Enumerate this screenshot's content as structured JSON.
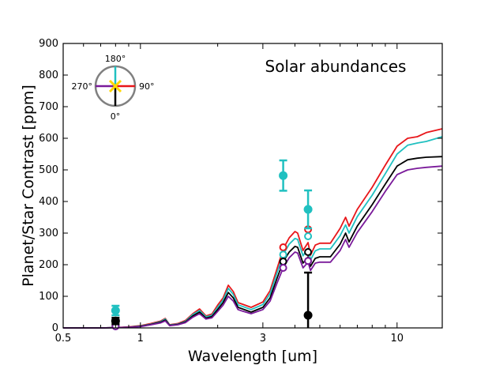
{
  "chart_data": {
    "type": "line",
    "title": "",
    "xlabel": "Wavelength [um]",
    "ylabel": "Planet/Star Contrast [ppm]",
    "xscale": "log",
    "xlim": [
      0.5,
      15
    ],
    "ylim": [
      0,
      900
    ],
    "x_ticks": [
      {
        "value": 0.5,
        "label": "0.5"
      },
      {
        "value": 1,
        "label": "1"
      },
      {
        "value": 3,
        "label": "3"
      },
      {
        "value": 10,
        "label": "10"
      }
    ],
    "y_ticks": [
      {
        "value": 0,
        "label": "0"
      },
      {
        "value": 100,
        "label": "100"
      },
      {
        "value": 200,
        "label": "200"
      },
      {
        "value": 300,
        "label": "300"
      },
      {
        "value": 400,
        "label": "400"
      },
      {
        "value": 500,
        "label": "500"
      },
      {
        "value": 600,
        "label": "600"
      },
      {
        "value": 700,
        "label": "700"
      },
      {
        "value": 800,
        "label": "800"
      },
      {
        "value": 900,
        "label": "900"
      }
    ],
    "annotation": "Solar abundances",
    "compass": {
      "labels": {
        "top": "180°",
        "right": "90°",
        "bottom": "0°",
        "left": "270°"
      },
      "colors": {
        "top": "#20c0c0",
        "right": "#e8161a",
        "bottom": "#000000",
        "left": "#7a1a9a"
      },
      "marker_color": "#ffd700"
    },
    "series": [
      {
        "name": "90°",
        "color": "#e8161a",
        "x": [
          0.5,
          0.6,
          0.7,
          0.8,
          0.9,
          1.0,
          1.1,
          1.2,
          1.25,
          1.3,
          1.4,
          1.5,
          1.6,
          1.7,
          1.8,
          1.9,
          2.0,
          2.1,
          2.2,
          2.3,
          2.4,
          2.5,
          2.7,
          3.0,
          3.2,
          3.4,
          3.6,
          3.8,
          4.0,
          4.1,
          4.3,
          4.5,
          4.6,
          4.8,
          5.0,
          5.5,
          6.0,
          6.3,
          6.5,
          7.0,
          8.0,
          9.0,
          10.0,
          11.0,
          12.0,
          13.0,
          15.0
        ],
        "y": [
          0,
          0,
          0,
          1,
          3,
          7,
          14,
          22,
          30,
          10,
          14,
          24,
          45,
          60,
          38,
          44,
          72,
          95,
          135,
          115,
          80,
          75,
          65,
          82,
          118,
          185,
          250,
          285,
          305,
          300,
          245,
          270,
          230,
          262,
          268,
          268,
          315,
          350,
          322,
          375,
          445,
          515,
          575,
          600,
          605,
          618,
          630
        ]
      },
      {
        "name": "180°",
        "color": "#20c0c0",
        "x": [
          0.5,
          0.6,
          0.7,
          0.8,
          0.9,
          1.0,
          1.1,
          1.2,
          1.25,
          1.3,
          1.4,
          1.5,
          1.6,
          1.7,
          1.8,
          1.9,
          2.0,
          2.1,
          2.2,
          2.3,
          2.4,
          2.5,
          2.7,
          3.0,
          3.2,
          3.4,
          3.6,
          3.8,
          4.0,
          4.1,
          4.3,
          4.5,
          4.6,
          4.8,
          5.0,
          5.5,
          6.0,
          6.3,
          6.5,
          7.0,
          8.0,
          9.0,
          10.0,
          11.0,
          12.0,
          13.0,
          15.0
        ],
        "y": [
          0,
          0,
          0,
          1,
          2,
          6,
          12,
          20,
          28,
          9,
          12,
          21,
          42,
          55,
          35,
          40,
          65,
          88,
          125,
          106,
          73,
          68,
          58,
          74,
          108,
          172,
          232,
          265,
          283,
          280,
          228,
          252,
          215,
          244,
          250,
          250,
          292,
          326,
          300,
          352,
          420,
          488,
          550,
          578,
          585,
          590,
          605
        ]
      },
      {
        "name": "0°",
        "color": "#000000",
        "x": [
          0.5,
          0.6,
          0.7,
          0.8,
          0.9,
          1.0,
          1.1,
          1.2,
          1.25,
          1.3,
          1.4,
          1.5,
          1.6,
          1.7,
          1.8,
          1.9,
          2.0,
          2.1,
          2.2,
          2.3,
          2.4,
          2.5,
          2.7,
          3.0,
          3.2,
          3.4,
          3.6,
          3.8,
          4.0,
          4.1,
          4.3,
          4.5,
          4.6,
          4.8,
          5.0,
          5.5,
          6.0,
          6.3,
          6.5,
          7.0,
          8.0,
          9.0,
          10.0,
          11.0,
          12.0,
          13.0,
          15.0
        ],
        "y": [
          0,
          0,
          0,
          1,
          2,
          5,
          11,
          18,
          25,
          8,
          11,
          19,
          38,
          50,
          31,
          36,
          58,
          80,
          112,
          95,
          65,
          60,
          50,
          65,
          95,
          155,
          210,
          240,
          258,
          255,
          205,
          225,
          195,
          220,
          225,
          225,
          265,
          300,
          272,
          322,
          390,
          455,
          512,
          532,
          537,
          540,
          542
        ]
      },
      {
        "name": "270°",
        "color": "#7a1a9a",
        "x": [
          0.5,
          0.6,
          0.7,
          0.8,
          0.9,
          1.0,
          1.1,
          1.2,
          1.25,
          1.3,
          1.4,
          1.5,
          1.6,
          1.7,
          1.8,
          1.9,
          2.0,
          2.1,
          2.2,
          2.3,
          2.4,
          2.5,
          2.7,
          3.0,
          3.2,
          3.4,
          3.6,
          3.8,
          4.0,
          4.1,
          4.3,
          4.5,
          4.6,
          4.8,
          5.0,
          5.5,
          6.0,
          6.3,
          6.5,
          7.0,
          8.0,
          9.0,
          10.0,
          11.0,
          12.0,
          13.0,
          15.0
        ],
        "y": [
          0,
          0,
          0,
          1,
          2,
          4,
          10,
          16,
          22,
          7,
          10,
          17,
          34,
          45,
          28,
          32,
          52,
          72,
          100,
          85,
          58,
          53,
          45,
          58,
          85,
          140,
          190,
          222,
          240,
          237,
          190,
          208,
          182,
          205,
          208,
          208,
          245,
          280,
          255,
          302,
          368,
          432,
          485,
          500,
          505,
          508,
          512
        ]
      }
    ],
    "model_points": [
      {
        "x": 0.8,
        "y": 12,
        "color": "#e8161a"
      },
      {
        "x": 0.8,
        "y": 10,
        "color": "#20c0c0"
      },
      {
        "x": 0.8,
        "y": 7,
        "color": "#000000"
      },
      {
        "x": 0.8,
        "y": 5,
        "color": "#7a1a9a"
      },
      {
        "x": 3.6,
        "y": 255,
        "color": "#e8161a"
      },
      {
        "x": 3.6,
        "y": 232,
        "color": "#20c0c0"
      },
      {
        "x": 3.6,
        "y": 210,
        "color": "#000000"
      },
      {
        "x": 3.6,
        "y": 190,
        "color": "#7a1a9a"
      },
      {
        "x": 4.5,
        "y": 312,
        "color": "#e8161a"
      },
      {
        "x": 4.5,
        "y": 290,
        "color": "#20c0c0"
      },
      {
        "x": 4.5,
        "y": 240,
        "color": "#000000"
      },
      {
        "x": 4.5,
        "y": 212,
        "color": "#7a1a9a"
      }
    ],
    "observations": [
      {
        "x": 0.8,
        "y": 55,
        "yerr": 15,
        "color": "#20c0c0"
      },
      {
        "x": 0.8,
        "y": 22,
        "yerr": 10,
        "color": "#000000"
      },
      {
        "x": 3.6,
        "y": 482,
        "yerr": 48,
        "color": "#20c0c0"
      },
      {
        "x": 4.5,
        "y": 375,
        "yerr": 60,
        "color": "#20c0c0"
      },
      {
        "x": 4.5,
        "y": 40,
        "yerr": 135,
        "color": "#000000"
      }
    ]
  }
}
